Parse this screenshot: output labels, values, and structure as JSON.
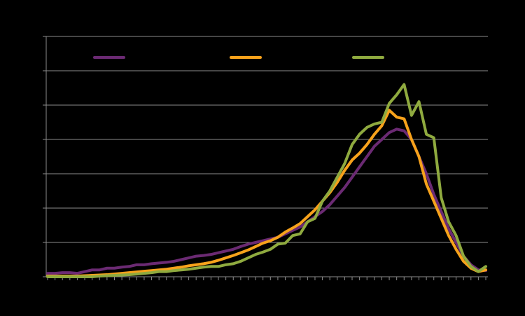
{
  "chart_data": {
    "type": "line",
    "categories": [
      null,
      null,
      null,
      null,
      null,
      null,
      null,
      null,
      null,
      null,
      null,
      null,
      null,
      null,
      null,
      null,
      null,
      null,
      null,
      null,
      null,
      null,
      null,
      null,
      null,
      null,
      null,
      null,
      null,
      null,
      null,
      null,
      null,
      null,
      null,
      null,
      null,
      null,
      null,
      null,
      null,
      null,
      null,
      null,
      null,
      null,
      null,
      null,
      null,
      null,
      null,
      null,
      null,
      null,
      null,
      null,
      null,
      null,
      null,
      null
    ],
    "series": [
      {
        "color": "#6b2a73",
        "values": [
          0.1,
          0.1,
          0.12,
          0.12,
          0.1,
          0.15,
          0.2,
          0.2,
          0.25,
          0.25,
          0.28,
          0.3,
          0.35,
          0.35,
          0.38,
          0.4,
          0.42,
          0.45,
          0.5,
          0.55,
          0.6,
          0.62,
          0.65,
          0.7,
          0.75,
          0.8,
          0.88,
          0.95,
          1.0,
          1.05,
          1.1,
          1.15,
          1.25,
          1.35,
          1.45,
          1.6,
          1.75,
          1.9,
          2.1,
          2.35,
          2.6,
          2.9,
          3.2,
          3.5,
          3.8,
          4.0,
          4.2,
          4.3,
          4.25,
          4.0,
          3.5,
          3.0,
          2.4,
          1.9,
          1.4,
          1.0,
          0.6,
          0.35,
          0.2,
          0.18
        ]
      },
      {
        "color": "#f7a21b",
        "values": [
          0.02,
          0.02,
          0.02,
          0.02,
          0.02,
          0.03,
          0.04,
          0.05,
          0.06,
          0.08,
          0.1,
          0.12,
          0.14,
          0.16,
          0.18,
          0.2,
          0.22,
          0.25,
          0.28,
          0.32,
          0.35,
          0.38,
          0.42,
          0.48,
          0.55,
          0.62,
          0.7,
          0.78,
          0.88,
          0.98,
          1.05,
          1.15,
          1.3,
          1.42,
          1.55,
          1.75,
          1.95,
          2.2,
          2.45,
          2.75,
          3.1,
          3.4,
          3.6,
          3.85,
          4.15,
          4.4,
          4.85,
          4.65,
          4.6,
          4.0,
          3.5,
          2.7,
          2.2,
          1.7,
          1.2,
          0.8,
          0.45,
          0.25,
          0.15,
          0.2
        ]
      },
      {
        "color": "#8faa3f",
        "values": [
          0,
          0,
          0,
          0,
          0,
          0,
          0,
          0.02,
          0.03,
          0.04,
          0.05,
          0.06,
          0.08,
          0.1,
          0.12,
          0.15,
          0.15,
          0.18,
          0.2,
          0.22,
          0.25,
          0.28,
          0.3,
          0.3,
          0.35,
          0.38,
          0.45,
          0.55,
          0.65,
          0.72,
          0.8,
          0.95,
          0.98,
          1.2,
          1.25,
          1.6,
          1.7,
          2.2,
          2.5,
          2.9,
          3.3,
          3.85,
          4.15,
          4.35,
          4.45,
          4.5,
          5.05,
          5.3,
          5.6,
          4.7,
          5.1,
          4.15,
          4.05,
          2.3,
          1.6,
          1.2,
          0.6,
          0.3,
          0.15,
          0.3
        ]
      }
    ],
    "ylim": [
      0,
      7
    ],
    "yticks": [
      0,
      1,
      2,
      3,
      4,
      5,
      6,
      7
    ],
    "grid": true
  }
}
